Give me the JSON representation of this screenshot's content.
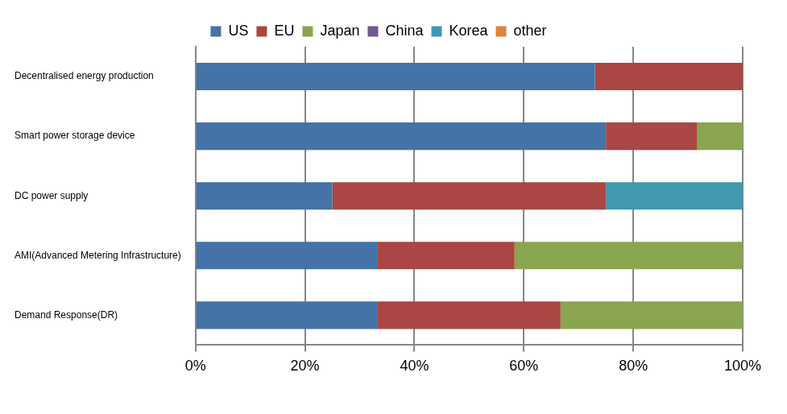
{
  "chart_data": {
    "type": "bar",
    "orientation": "horizontal",
    "stacked": true,
    "legend": "top",
    "grid": true,
    "categories": [
      "Decentralised energy production",
      "Smart power storage device",
      "DC power supply",
      "AMI(Advanced Metering Infrastructure)",
      "Demand Response(DR)"
    ],
    "series": [
      {
        "name": "US",
        "color": "#4572a7",
        "values": [
          73,
          75,
          25,
          33.3,
          33.3
        ]
      },
      {
        "name": "EU",
        "color": "#aa4643",
        "values": [
          27,
          16.7,
          50,
          25,
          33.4
        ]
      },
      {
        "name": "Japan",
        "color": "#89a54e",
        "values": [
          0,
          8.3,
          0,
          41.7,
          33.3
        ]
      },
      {
        "name": "China",
        "color": "#71588f",
        "values": [
          0,
          0,
          0,
          0,
          0
        ]
      },
      {
        "name": "Korea",
        "color": "#4198af",
        "values": [
          0,
          0,
          25,
          0,
          0
        ]
      },
      {
        "name": "other",
        "color": "#db843d",
        "values": [
          0,
          0,
          0,
          0,
          0
        ]
      }
    ],
    "xlim": [
      0,
      100
    ],
    "xticks": [
      {
        "value": 0,
        "label": "0%"
      },
      {
        "value": 20,
        "label": "20%"
      },
      {
        "value": 40,
        "label": "40%"
      },
      {
        "value": 60,
        "label": "60%"
      },
      {
        "value": 80,
        "label": "80%"
      },
      {
        "value": 100,
        "label": "100%"
      }
    ]
  }
}
